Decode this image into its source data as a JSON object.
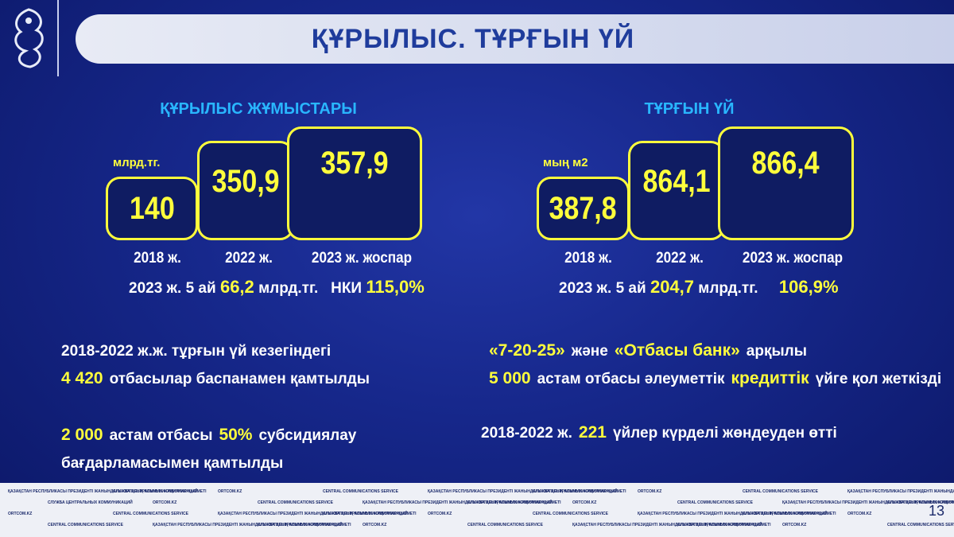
{
  "header": {
    "title": "ҚҰРЫЛЫС. ТҰРҒЫН ҮЙ"
  },
  "panels": [
    {
      "title": "ҚҰРЫЛЫС ЖҰМЫСТАРЫ",
      "unit": "млрд.тг.",
      "boxes": [
        {
          "value": "140",
          "label": "2018 ж."
        },
        {
          "value": "350,9",
          "label": "2022 ж."
        },
        {
          "value": "357,9",
          "label": "2023 ж. жоспар"
        }
      ],
      "summary": {
        "period": "2023 ж. 5 ай",
        "amount": "66,2",
        "unit": "млрд.тг.",
        "index_label": "НКИ",
        "index": "115,0%"
      }
    },
    {
      "title": "ТҰРҒЫН ҮЙ",
      "unit": "мың м2",
      "boxes": [
        {
          "value": "387,8",
          "label": "2018 ж."
        },
        {
          "value": "864,1",
          "label": "2022 ж."
        },
        {
          "value": "866,4",
          "label": "2023 ж. жоспар"
        }
      ],
      "summary": {
        "period": "2023 ж. 5 ай",
        "amount": "204,7",
        "unit": "млрд.тг.",
        "index": "106,9%"
      }
    }
  ],
  "notes": [
    {
      "lines": [
        [
          {
            "text": "2018-2022 ж.ж. тұрғын үй кезегіндегі",
            "color": "#ffffff"
          }
        ],
        [
          {
            "text": "4 420",
            "color": "#ffff3c"
          },
          {
            "text": "отбасылар баспанамен қамтылды",
            "color": "#ffffff"
          }
        ]
      ]
    },
    {
      "lines": [
        [
          {
            "text": "2 000",
            "color": "#ffff3c"
          },
          {
            "text": "астам отбасы",
            "color": "#ffffff"
          },
          {
            "text": "50%",
            "color": "#ffff3c"
          },
          {
            "text": "субсидиялау",
            "color": "#ffffff"
          }
        ],
        [
          {
            "text": "бағдарламасымен қамтылды",
            "color": "#ffffff"
          }
        ]
      ]
    },
    {
      "lines": [
        [
          {
            "text": "«7-20-25»",
            "color": "#ffff3c"
          },
          {
            "text": "және",
            "color": "#ffffff"
          },
          {
            "text": "«Отбасы банк»",
            "color": "#ffff3c"
          },
          {
            "text": "арқылы",
            "color": "#ffffff"
          }
        ],
        [
          {
            "text": "5 000",
            "color": "#ffff3c"
          },
          {
            "text": "астам отбасы әлеуметтік",
            "color": "#ffffff"
          },
          {
            "text": "кредиттік",
            "color": "#ffff3c"
          },
          {
            "text": "үйге қол жеткізді",
            "color": "#ffffff"
          }
        ]
      ]
    },
    {
      "lines": [
        [
          {
            "text": "2018-2022 ж.",
            "color": "#ffffff"
          },
          {
            "text": "221",
            "color": "#ffff3c"
          },
          {
            "text": "үйлер күрделі жөндеуден өтті",
            "color": "#ffffff"
          }
        ]
      ]
    }
  ],
  "footer": {
    "items": [
      "ҚАЗАҚСТАН РЕСПУБЛИКАСЫ ПРЕЗИДЕНТІ ЖАНЫНДАҒЫ ОРТАЛЫҚ КОММУНИКАЦИЯЛАР ҚЫЗМЕТІ",
      "СЛУЖБА ЦЕНТРАЛЬНЫХ КОММУНИКАЦИЙ",
      "ORTCOM.KZ",
      "CENTRAL COMMUNICATIONS SERVICE"
    ],
    "page": "13"
  }
}
